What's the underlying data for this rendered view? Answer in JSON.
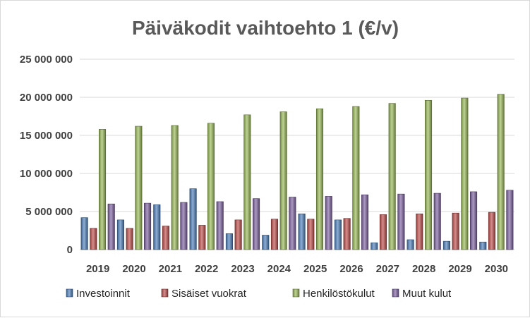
{
  "chart_data": {
    "type": "bar",
    "title": "Päiväkodit vaihtoehto 1 (€/v)",
    "xlabel": "",
    "ylabel": "",
    "ylim": [
      0,
      25000000
    ],
    "yticks": [
      0,
      5000000,
      10000000,
      15000000,
      20000000,
      25000000
    ],
    "ytick_labels": [
      "0",
      "5 000 000",
      "10 000 000",
      "15 000 000",
      "20 000 000",
      "25 000 000"
    ],
    "grid": true,
    "legend_position": "bottom",
    "categories": [
      "2019",
      "2020",
      "2021",
      "2022",
      "2023",
      "2024",
      "2025",
      "2026",
      "2027",
      "2028",
      "2029",
      "2030"
    ],
    "series": [
      {
        "name": "Investoinnit",
        "color": "#4f81bd",
        "values": [
          4200000,
          3900000,
          5900000,
          8000000,
          2100000,
          1900000,
          4700000,
          3900000,
          900000,
          1300000,
          1100000,
          1000000
        ]
      },
      {
        "name": "Sisäiset vuokrat",
        "color": "#c0504d",
        "values": [
          2800000,
          2800000,
          3100000,
          3200000,
          3900000,
          4000000,
          4000000,
          4100000,
          4600000,
          4700000,
          4800000,
          4900000
        ]
      },
      {
        "name": "Henkilöstökulut",
        "color": "#9bbb59",
        "values": [
          15800000,
          16200000,
          16300000,
          16600000,
          17700000,
          18100000,
          18500000,
          18800000,
          19200000,
          19600000,
          19900000,
          20400000
        ]
      },
      {
        "name": "Muut kulut",
        "color": "#8064a2",
        "values": [
          6000000,
          6100000,
          6200000,
          6300000,
          6700000,
          6900000,
          7000000,
          7200000,
          7300000,
          7400000,
          7600000,
          7800000
        ]
      }
    ]
  }
}
